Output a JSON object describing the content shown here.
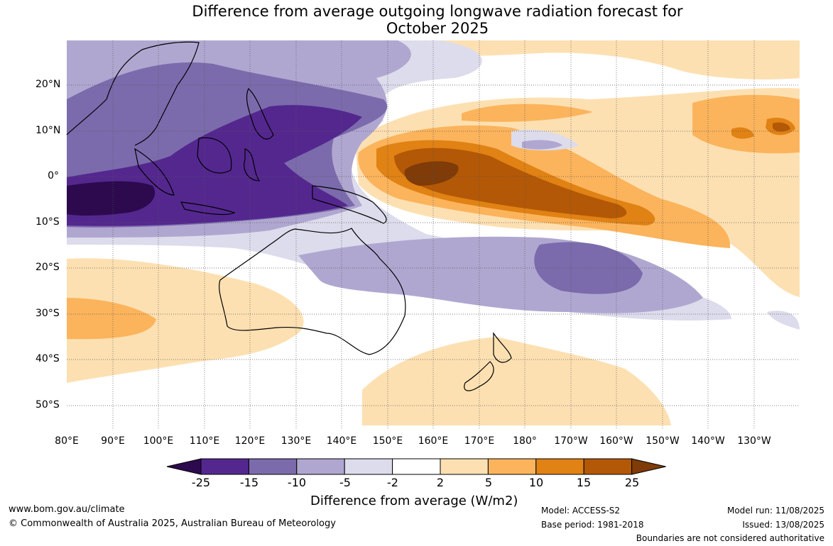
{
  "title": {
    "line1": "Difference from average outgoing longwave radiation forecast for",
    "line2": "October 2025"
  },
  "map": {
    "lat_labels": [
      "20°N",
      "10°N",
      "0°",
      "10°S",
      "20°S",
      "30°S",
      "40°S",
      "50°S"
    ],
    "lon_labels": [
      "80°E",
      "90°E",
      "100°E",
      "110°E",
      "120°E",
      "130°E",
      "140°E",
      "150°E",
      "160°E",
      "170°E",
      "180°",
      "170°W",
      "160°W",
      "150°W",
      "140°W",
      "130°W"
    ],
    "lon_range": [
      "80°E",
      "120°W"
    ],
    "lat_range": [
      "30°N",
      "55°S"
    ]
  },
  "legend": {
    "labels": [
      "-25",
      "-15",
      "-10",
      "-5",
      "-2",
      "2",
      "5",
      "10",
      "15",
      "25"
    ],
    "colors": [
      "#2d0a4e",
      "#54278f",
      "#7b6bac",
      "#b0a7d1",
      "#dcdcec",
      "#ffffff",
      "#fde0b2",
      "#fbb45c",
      "#e08214",
      "#b35806",
      "#7f3b08"
    ],
    "title": "Difference from average (W/m2)"
  },
  "footer": {
    "website": "www.bom.gov.au/climate",
    "copyright": "© Commonwealth of Australia 2025, Australian Bureau of Meteorology",
    "model": "Model: ACCESS-S2",
    "base_period": "Base period: 1981-2018",
    "model_run": "Model run: 11/08/2025",
    "issued": "Issued: 13/08/2025",
    "disclaimer": "Boundaries are not considered authoritative"
  }
}
